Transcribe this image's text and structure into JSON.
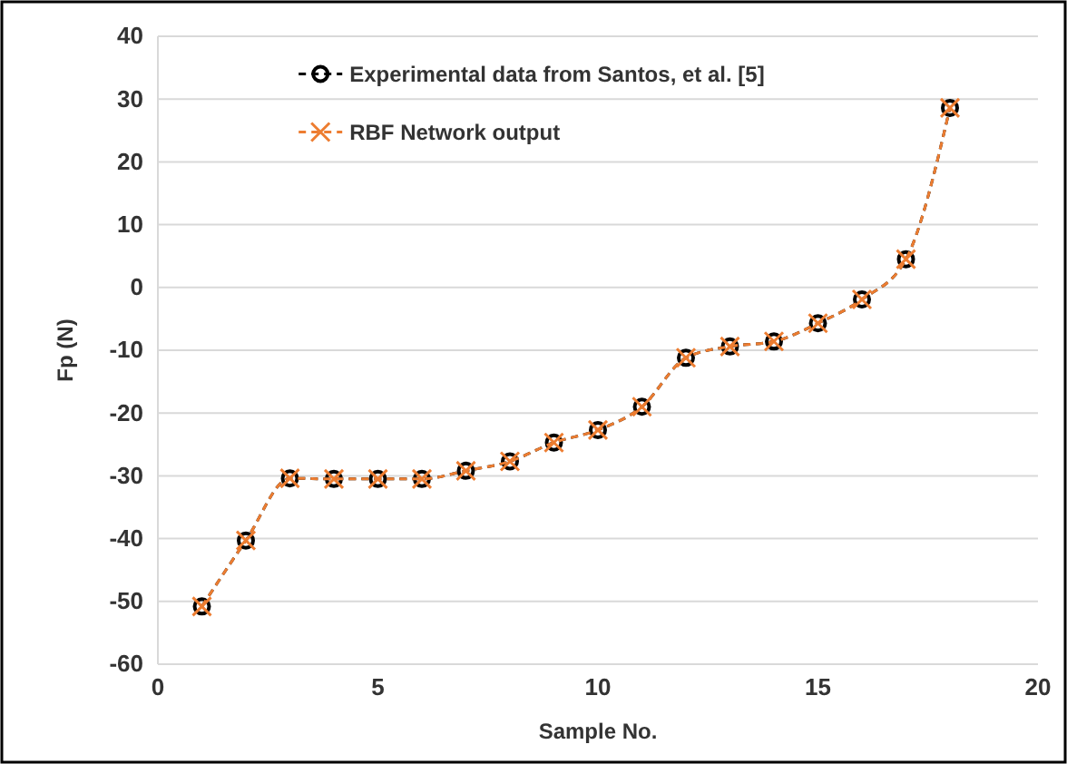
{
  "chart_data": {
    "type": "line",
    "xlabel": "Sample No.",
    "ylabel": "Fp (N)",
    "x": [
      1,
      2,
      3,
      4,
      5,
      6,
      7,
      8,
      9,
      10,
      11,
      12,
      13,
      14,
      15,
      16,
      17,
      18
    ],
    "series": [
      {
        "name": "Experimental data from Santos, et al.  [5]",
        "color": "#000000",
        "marker": "circle",
        "line_style": "dashed",
        "values": [
          -50.8,
          -40.3,
          -30.4,
          -30.5,
          -30.5,
          -30.5,
          -29.2,
          -27.7,
          -24.7,
          -22.7,
          -19,
          -11.2,
          -9.4,
          -8.6,
          -5.7,
          -1.9,
          4.5,
          28.6
        ]
      },
      {
        "name": "RBF Network output",
        "color": "#ed7d31",
        "marker": "cross",
        "line_style": "dashed",
        "values": [
          -50.8,
          -40.3,
          -30.4,
          -30.5,
          -30.5,
          -30.5,
          -29.2,
          -27.7,
          -24.7,
          -22.7,
          -19,
          -11.2,
          -9.4,
          -8.6,
          -5.7,
          -1.9,
          4.5,
          28.6
        ]
      }
    ],
    "xlim": [
      0,
      20
    ],
    "xticks": [
      0,
      5,
      10,
      15,
      20
    ],
    "ylim": [
      -60,
      40
    ],
    "yticks": [
      -60,
      -50,
      -40,
      -30,
      -20,
      -10,
      0,
      10,
      20,
      30,
      40
    ],
    "grid": "y",
    "legend": "top left"
  }
}
